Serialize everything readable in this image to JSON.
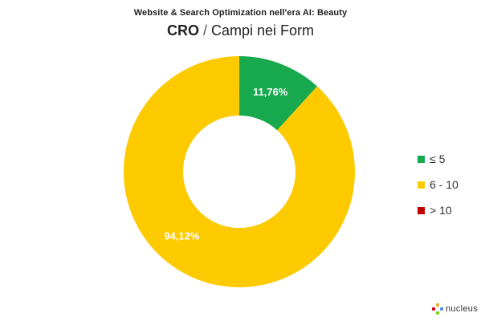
{
  "header": {
    "supertitle": "Website & Search Optimization nell'era AI: Beauty",
    "title_main": "CRO",
    "title_sep": " / ",
    "title_sub": "Campi nei Form"
  },
  "chart_data": {
    "type": "pie",
    "donut": true,
    "categories": [
      "≤ 5",
      " 6 - 10",
      "> 10"
    ],
    "values": [
      11.76,
      94.12,
      0
    ],
    "data_labels": [
      "11,76%",
      "94,12%",
      ""
    ],
    "colors": [
      "#18A94E",
      "#FDCA00",
      "#C00000"
    ],
    "legend_position": "right",
    "start_angle_deg": 0,
    "direction": "clockwise"
  },
  "legend": {
    "items": [
      {
        "label": "≤ 5",
        "color": "#18A94E"
      },
      {
        "label": " 6 - 10",
        "color": "#FDCA00"
      },
      {
        "label": "> 10",
        "color": "#C00000"
      }
    ]
  },
  "brand": {
    "name": "nucleus",
    "logo_colors": [
      "#F5A623",
      "#4A90E2",
      "#7ED321",
      "#D0021B"
    ]
  }
}
